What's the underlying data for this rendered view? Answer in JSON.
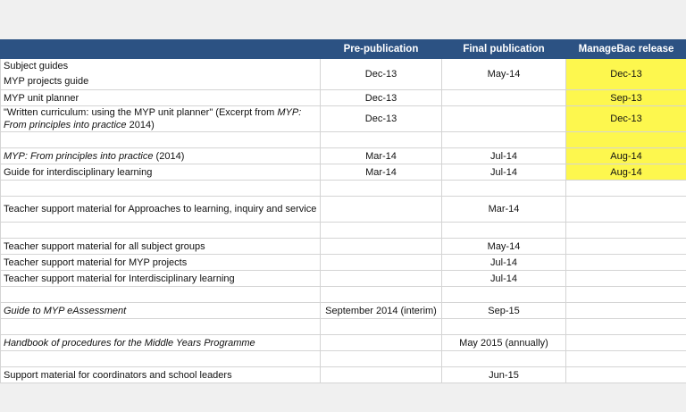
{
  "headers": [
    "",
    "Pre-publication",
    "Final publication",
    "ManageBac release"
  ],
  "rows": {
    "r1": {
      "lines": [
        "Subject guides",
        "MYP projects guide"
      ],
      "pre": "Dec-13",
      "final": "May-14",
      "mb": "Dec-13"
    },
    "r2": {
      "label": "MYP unit planner",
      "pre": "Dec-13",
      "final": "",
      "mb": "Sep-13"
    },
    "r3": {
      "label_a": "\"Written curriculum: using the MYP unit planner\" (Excerpt from ",
      "label_b": "MYP: From principles into practice",
      "label_c": " 2014)",
      "pre": "Dec-13",
      "final": "",
      "mb": "Dec-13"
    },
    "r4": {
      "label_a": "MYP: From principles into practice",
      "label_b": " (2014)",
      "pre": "Mar-14",
      "final": "Jul-14",
      "mb": "Aug-14"
    },
    "r5": {
      "label": "Guide for interdisciplinary learning",
      "pre": "Mar-14",
      "final": "Jul-14",
      "mb": "Aug-14"
    },
    "r6": {
      "label": "Teacher support material for Approaches to learning, inquiry and service",
      "pre": "",
      "final": "Mar-14",
      "mb": ""
    },
    "r7": {
      "label": "Teacher support material for all subject groups",
      "pre": "",
      "final": "May-14",
      "mb": ""
    },
    "r8": {
      "label": "Teacher support material for MYP projects",
      "pre": "",
      "final": "Jul-14",
      "mb": ""
    },
    "r9": {
      "label": "Teacher support material for Interdisciplinary learning",
      "pre": "",
      "final": "Jul-14",
      "mb": ""
    },
    "r10": {
      "label": "Guide to MYP eAssessment",
      "pre": "September 2014 (interim)",
      "final": "Sep-15",
      "mb": ""
    },
    "r11": {
      "label": "Handbook of procedures for the Middle Years Programme",
      "pre": "",
      "final": "May 2015 (annually)",
      "mb": ""
    },
    "r12": {
      "label": "Support material for coordinators and school leaders",
      "pre": "",
      "final": "Jun-15",
      "mb": ""
    }
  },
  "colors": {
    "header_bg": "#2c5283",
    "highlight": "#fdf74e"
  }
}
